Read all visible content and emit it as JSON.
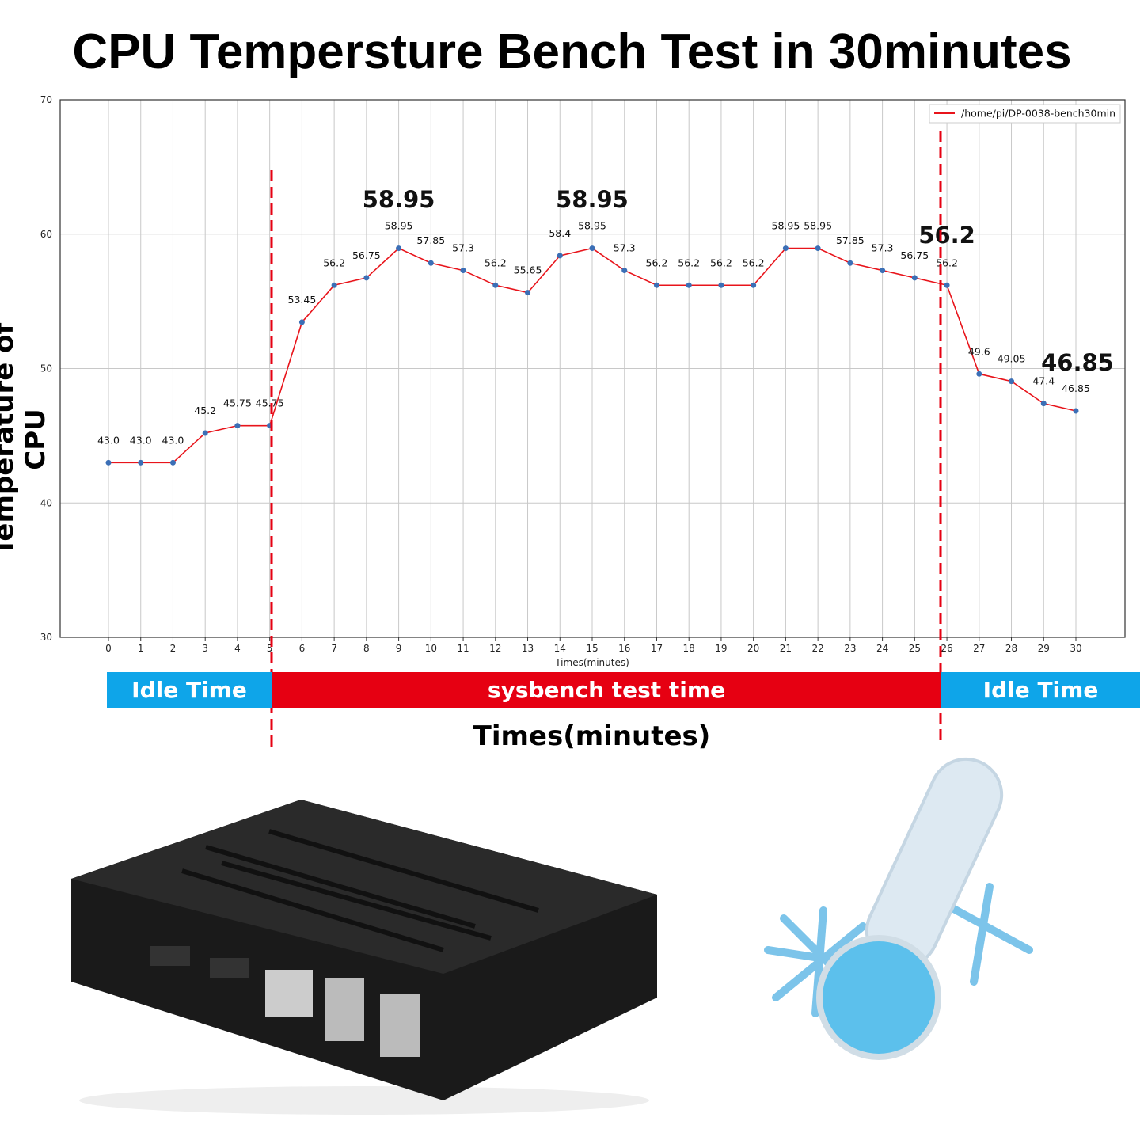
{
  "title": "CPU Tempersture Bench Test in 30minutes",
  "y_axis_title": "Temperature of CPU",
  "x_axis_title": "Times(minutes)",
  "bands": [
    {
      "label": "Idle Time",
      "color": "#0ea5e9",
      "from": 0,
      "to": 5
    },
    {
      "label": "sysbench test time",
      "color": "#e60012",
      "from": 5,
      "to": 26
    },
    {
      "label": "Idle Time",
      "color": "#0ea5e9",
      "from": 26,
      "to": 30
    }
  ],
  "highlights": [
    "58.95",
    "58.95",
    "56.2",
    "46.85"
  ],
  "chart_data": {
    "type": "line",
    "title": "",
    "xlabel": "Times(minutes)",
    "ylabel": "",
    "xlim": [
      -1.5,
      31.5
    ],
    "ylim": [
      30,
      70
    ],
    "yticks": [
      30,
      40,
      50,
      60,
      70
    ],
    "xticks": [
      0,
      1,
      2,
      3,
      4,
      5,
      6,
      7,
      8,
      9,
      10,
      11,
      12,
      13,
      14,
      15,
      16,
      17,
      18,
      19,
      20,
      21,
      22,
      23,
      24,
      25,
      26,
      27,
      28,
      29,
      30
    ],
    "grid": true,
    "legend_placement": "top-right",
    "line_color": "#e8141b",
    "marker_color": "#3b6fb6",
    "vlines": [
      5,
      26
    ],
    "vline_color": "#e60012",
    "series": [
      {
        "name": "/home/pi/DP-0038-bench30min",
        "x": [
          0,
          1,
          2,
          3,
          4,
          5,
          6,
          7,
          8,
          9,
          10,
          11,
          12,
          13,
          14,
          15,
          16,
          17,
          18,
          19,
          20,
          21,
          22,
          23,
          24,
          25,
          26,
          27,
          28,
          29,
          30
        ],
        "values": [
          43.0,
          43.0,
          43.0,
          45.2,
          45.75,
          45.75,
          53.45,
          56.2,
          56.75,
          58.95,
          57.85,
          57.3,
          56.2,
          55.65,
          58.4,
          58.95,
          57.3,
          56.2,
          56.2,
          56.2,
          56.2,
          58.95,
          58.95,
          57.85,
          57.3,
          56.75,
          56.2,
          49.6,
          49.05,
          47.4,
          46.85
        ],
        "labels": [
          "43.0",
          "43.0",
          "43.0",
          "45.2",
          "45.75",
          "45.75",
          "53.45",
          "56.2",
          "56.75",
          "58.95",
          "57.85",
          "57.3",
          "56.2",
          "55.65",
          "58.4",
          "58.95",
          "57.3",
          "56.2",
          "56.2",
          "56.2",
          "56.2",
          "58.95",
          "58.95",
          "57.85",
          "57.3",
          "56.75",
          "56.2",
          "49.6",
          "49.05",
          "47.4",
          "46.85"
        ]
      }
    ]
  }
}
